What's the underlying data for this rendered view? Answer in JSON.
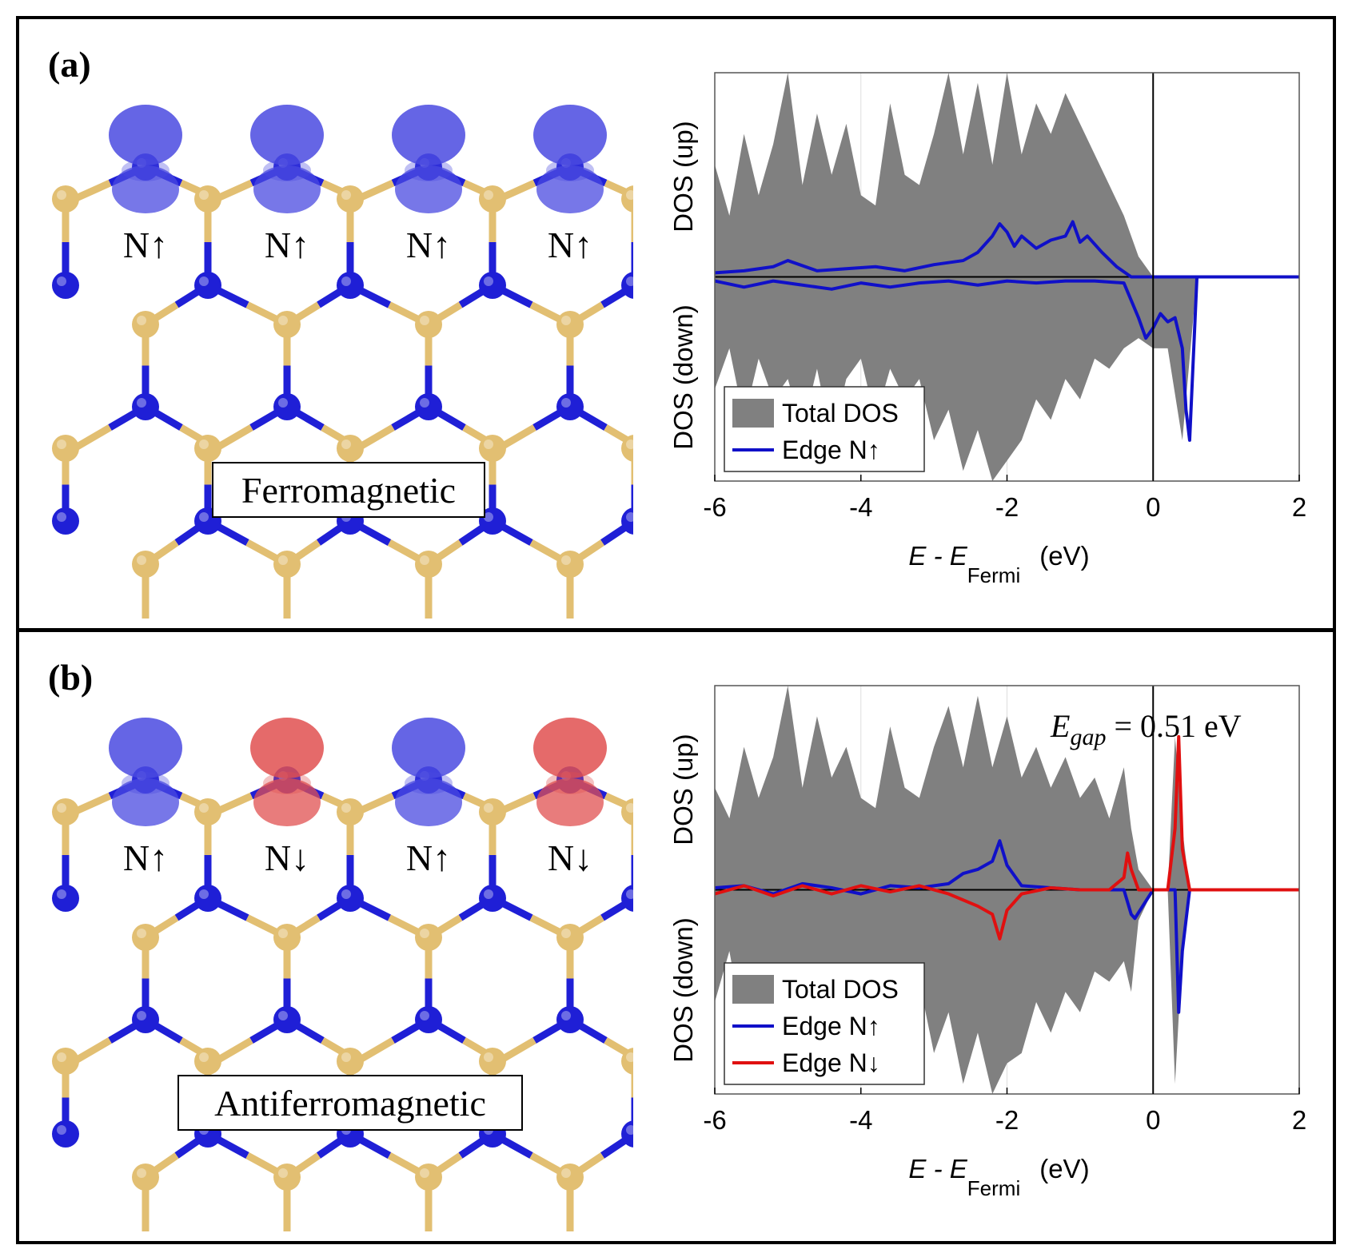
{
  "figure": {
    "panel_a": {
      "label": "(a)",
      "phase": "Ferromagnetic",
      "edge_labels": [
        "N↑",
        "N↑",
        "N↑",
        "N↑"
      ],
      "lobe_colors": [
        "#4a4ae0",
        "#4a4ae0",
        "#4a4ae0",
        "#4a4ae0"
      ]
    },
    "panel_b": {
      "label": "(b)",
      "phase": "Antiferromagnetic",
      "edge_labels": [
        "N↑",
        "N↓",
        "N↑",
        "N↓"
      ],
      "lobe_colors": [
        "#4a4ae0",
        "#e05050",
        "#4a4ae0",
        "#e05050"
      ]
    },
    "colors": {
      "nitrogen": "#1f1fd6",
      "boron": "#e2bf72",
      "total_dos": "#808080",
      "edge_up": "#1010c8",
      "edge_down": "#e01010"
    }
  },
  "chart_data": [
    {
      "type": "area",
      "panel": "a",
      "xlabel_main": "E - E",
      "xlabel_sub": "Fermi",
      "xlabel_unit": "(eV)",
      "ylabel_up": "DOS (up)",
      "ylabel_down": "DOS (down)",
      "xlim": [
        -6,
        2
      ],
      "ylim": [
        -1,
        1
      ],
      "xticks": [
        -6,
        -4,
        -2,
        0,
        2
      ],
      "xtick_labels": [
        "-6",
        "-4",
        "-2",
        "0",
        "2"
      ],
      "legend": [
        "Total DOS",
        "Edge N↑"
      ],
      "legend_position": "bottom-left",
      "annotation": "",
      "series": [
        {
          "name": "Total DOS (up)",
          "x": [
            -6.0,
            -5.8,
            -5.6,
            -5.4,
            -5.2,
            -5.0,
            -4.8,
            -4.6,
            -4.4,
            -4.2,
            -4.0,
            -3.8,
            -3.6,
            -3.4,
            -3.2,
            -3.0,
            -2.8,
            -2.6,
            -2.4,
            -2.2,
            -2.0,
            -1.8,
            -1.6,
            -1.4,
            -1.2,
            -1.0,
            -0.8,
            -0.6,
            -0.4,
            -0.2,
            0.0,
            0.2,
            0.4,
            0.6,
            0.8,
            1.0,
            2.0
          ],
          "y": [
            0.55,
            0.3,
            0.7,
            0.4,
            0.65,
            1.0,
            0.45,
            0.8,
            0.5,
            0.75,
            0.4,
            0.35,
            0.85,
            0.5,
            0.45,
            0.7,
            1.0,
            0.6,
            0.95,
            0.55,
            1.0,
            0.6,
            0.85,
            0.7,
            0.9,
            0.75,
            0.6,
            0.45,
            0.3,
            0.1,
            0,
            0,
            0,
            0,
            0,
            0,
            0
          ]
        },
        {
          "name": "Total DOS (down)",
          "x": [
            -6.0,
            -5.8,
            -5.6,
            -5.4,
            -5.2,
            -5.0,
            -4.8,
            -4.6,
            -4.4,
            -4.2,
            -4.0,
            -3.8,
            -3.6,
            -3.4,
            -3.2,
            -3.0,
            -2.8,
            -2.6,
            -2.4,
            -2.2,
            -2.0,
            -1.8,
            -1.6,
            -1.4,
            -1.2,
            -1.0,
            -0.8,
            -0.6,
            -0.4,
            -0.2,
            0.0,
            0.2,
            0.4,
            0.6,
            0.8,
            1.0,
            2.0
          ],
          "y": [
            -0.55,
            -0.35,
            -0.7,
            -0.4,
            -0.6,
            -0.5,
            -0.75,
            -0.45,
            -0.8,
            -0.5,
            -0.4,
            -0.7,
            -0.45,
            -0.6,
            -0.5,
            -0.8,
            -0.65,
            -0.95,
            -0.75,
            -1.0,
            -0.9,
            -0.8,
            -0.6,
            -0.7,
            -0.5,
            -0.6,
            -0.4,
            -0.45,
            -0.35,
            -0.3,
            -0.35,
            -0.35,
            -0.8,
            0,
            0,
            0,
            0
          ]
        },
        {
          "name": "Edge N↑ (up)",
          "x": [
            -6.0,
            -5.6,
            -5.2,
            -5.0,
            -4.6,
            -4.2,
            -3.8,
            -3.4,
            -3.0,
            -2.6,
            -2.4,
            -2.2,
            -2.1,
            -2.0,
            -1.9,
            -1.8,
            -1.6,
            -1.4,
            -1.2,
            -1.1,
            -1.0,
            -0.9,
            -0.7,
            -0.5,
            -0.3,
            0.0,
            2.0
          ],
          "y": [
            0.02,
            0.03,
            0.05,
            0.08,
            0.03,
            0.04,
            0.05,
            0.03,
            0.06,
            0.08,
            0.12,
            0.2,
            0.26,
            0.22,
            0.15,
            0.2,
            0.14,
            0.18,
            0.2,
            0.27,
            0.17,
            0.2,
            0.12,
            0.05,
            0.0,
            0.0,
            0.0
          ]
        },
        {
          "name": "Edge N↑ (down)",
          "x": [
            -6.0,
            -5.6,
            -5.2,
            -4.8,
            -4.4,
            -4.0,
            -3.6,
            -3.2,
            -2.8,
            -2.4,
            -2.0,
            -1.6,
            -1.2,
            -0.8,
            -0.4,
            -0.2,
            -0.1,
            0.0,
            0.1,
            0.2,
            0.3,
            0.4,
            0.45,
            0.5,
            0.55,
            0.6,
            2.0
          ],
          "y": [
            -0.02,
            -0.05,
            -0.02,
            -0.04,
            -0.06,
            -0.03,
            -0.05,
            -0.03,
            -0.02,
            -0.04,
            -0.02,
            -0.03,
            -0.02,
            -0.02,
            -0.03,
            -0.2,
            -0.3,
            -0.25,
            -0.18,
            -0.22,
            -0.2,
            -0.35,
            -0.65,
            -0.8,
            -0.4,
            0.0,
            0.0
          ]
        }
      ]
    },
    {
      "type": "area",
      "panel": "b",
      "xlabel_main": "E - E",
      "xlabel_sub": "Fermi",
      "xlabel_unit": "(eV)",
      "ylabel_up": "DOS (up)",
      "ylabel_down": "DOS (down)",
      "xlim": [
        -6,
        2
      ],
      "ylim": [
        -1,
        1
      ],
      "xticks": [
        -6,
        -4,
        -2,
        0,
        2
      ],
      "xtick_labels": [
        "-6",
        "-4",
        "-2",
        "0",
        "2"
      ],
      "legend": [
        "Total DOS",
        "Edge N↑",
        "Edge N↓"
      ],
      "legend_position": "bottom-left",
      "annotation_sym": "E",
      "annotation_sub": "gap",
      "annotation_value": "= 0.51 eV",
      "series": [
        {
          "name": "Total DOS (up)",
          "x": [
            -6.0,
            -5.8,
            -5.6,
            -5.4,
            -5.2,
            -5.0,
            -4.8,
            -4.6,
            -4.4,
            -4.2,
            -4.0,
            -3.8,
            -3.6,
            -3.4,
            -3.2,
            -3.0,
            -2.8,
            -2.6,
            -2.4,
            -2.2,
            -2.0,
            -1.8,
            -1.6,
            -1.4,
            -1.2,
            -1.0,
            -0.8,
            -0.6,
            -0.4,
            -0.3,
            -0.2,
            0.0,
            0.2,
            0.3,
            0.4,
            0.5,
            2.0
          ],
          "y": [
            0.5,
            0.35,
            0.7,
            0.45,
            0.65,
            1.0,
            0.5,
            0.85,
            0.55,
            0.7,
            0.45,
            0.4,
            0.8,
            0.5,
            0.45,
            0.7,
            0.9,
            0.6,
            0.95,
            0.6,
            0.85,
            0.55,
            0.7,
            0.5,
            0.65,
            0.45,
            0.55,
            0.35,
            0.6,
            0.3,
            0.1,
            0,
            0,
            0.75,
            0.3,
            0,
            0
          ]
        },
        {
          "name": "Total DOS (down)",
          "x": [
            -6.0,
            -5.8,
            -5.6,
            -5.4,
            -5.2,
            -5.0,
            -4.8,
            -4.6,
            -4.4,
            -4.2,
            -4.0,
            -3.8,
            -3.6,
            -3.4,
            -3.2,
            -3.0,
            -2.8,
            -2.6,
            -2.4,
            -2.2,
            -2.0,
            -1.8,
            -1.6,
            -1.4,
            -1.2,
            -1.0,
            -0.8,
            -0.6,
            -0.4,
            -0.3,
            -0.2,
            0.0,
            0.2,
            0.3,
            0.4,
            0.5,
            2.0
          ],
          "y": [
            -0.55,
            -0.3,
            -0.7,
            -0.4,
            -0.6,
            -0.5,
            -0.8,
            -0.45,
            -0.75,
            -0.5,
            -0.4,
            -0.7,
            -0.5,
            -0.6,
            -0.45,
            -0.8,
            -0.6,
            -0.95,
            -0.7,
            -1.0,
            -0.85,
            -0.8,
            -0.55,
            -0.7,
            -0.5,
            -0.6,
            -0.4,
            -0.45,
            -0.35,
            -0.5,
            -0.15,
            0,
            0,
            -0.95,
            -0.3,
            0,
            0
          ]
        },
        {
          "name": "Edge N↑",
          "x": [
            -6.0,
            -5.6,
            -5.2,
            -4.8,
            -4.4,
            -4.0,
            -3.6,
            -3.2,
            -2.8,
            -2.6,
            -2.4,
            -2.2,
            -2.1,
            -2.0,
            -1.8,
            -1.4,
            -1.0,
            -0.6,
            -0.4,
            -0.3,
            -0.25,
            0.0,
            0.2,
            0.3,
            0.35,
            0.4,
            0.5,
            2.0
          ],
          "y": [
            0.01,
            0.02,
            -0.02,
            0.03,
            0.01,
            -0.02,
            0.02,
            0.01,
            0.03,
            0.08,
            0.1,
            0.14,
            0.24,
            0.12,
            0.02,
            0.01,
            0.0,
            0.0,
            0.0,
            -0.12,
            -0.14,
            0.0,
            0.0,
            0.0,
            -0.6,
            -0.3,
            0.0,
            0.0
          ]
        },
        {
          "name": "Edge N↓",
          "x": [
            -6.0,
            -5.6,
            -5.2,
            -4.8,
            -4.4,
            -4.0,
            -3.6,
            -3.2,
            -2.8,
            -2.6,
            -2.4,
            -2.2,
            -2.1,
            -2.0,
            -1.8,
            -1.4,
            -1.0,
            -0.6,
            -0.4,
            -0.35,
            -0.3,
            -0.2,
            0.0,
            0.2,
            0.3,
            0.35,
            0.4,
            0.5,
            2.0
          ],
          "y": [
            -0.02,
            0.02,
            -0.03,
            0.02,
            -0.02,
            0.02,
            -0.01,
            0.02,
            -0.02,
            -0.05,
            -0.08,
            -0.12,
            -0.24,
            -0.1,
            -0.02,
            0.01,
            0.0,
            0.0,
            0.06,
            0.18,
            0.1,
            0.0,
            0.0,
            0.0,
            0.3,
            0.75,
            0.2,
            0.0,
            0.0
          ]
        }
      ]
    }
  ]
}
